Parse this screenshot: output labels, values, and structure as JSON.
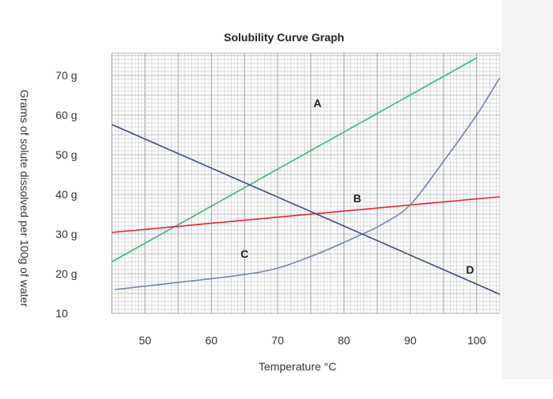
{
  "chart_data": {
    "type": "line",
    "title": "Solubility Curve Graph",
    "xlabel": "Temperature °C",
    "ylabel": "Grams of solute dissolved per 100g of water",
    "xlim": [
      45,
      103.5
    ],
    "ylim": [
      10,
      75.6
    ],
    "grid": true,
    "x_ticks": [
      {
        "v": 50,
        "label": "50"
      },
      {
        "v": 60,
        "label": "60"
      },
      {
        "v": 70,
        "label": "70"
      },
      {
        "v": 80,
        "label": "80"
      },
      {
        "v": 90,
        "label": "90"
      },
      {
        "v": 100,
        "label": "100"
      }
    ],
    "y_ticks": [
      {
        "v": 10,
        "label": "10"
      },
      {
        "v": 20,
        "label": "20 g"
      },
      {
        "v": 30,
        "label": "30 g"
      },
      {
        "v": 40,
        "label": "40 g"
      },
      {
        "v": 50,
        "label": "50 g"
      },
      {
        "v": 60,
        "label": "60 g"
      },
      {
        "v": 70,
        "label": "70 g"
      }
    ],
    "series": [
      {
        "name": "A",
        "color": "#3cb878",
        "points": [
          [
            45,
            23
          ],
          [
            100,
            74.4
          ]
        ],
        "label_at": [
          76,
          62
        ]
      },
      {
        "name": "B",
        "color": "#e8262a",
        "points": [
          [
            45,
            30.4
          ],
          [
            103.5,
            39.4
          ]
        ],
        "label_at": [
          82,
          38
        ]
      },
      {
        "name": "C",
        "color": "#6f87a8",
        "points": [
          [
            45.5,
            16
          ],
          [
            55,
            17.8
          ],
          [
            64.2,
            19.6
          ],
          [
            70,
            21.4
          ],
          [
            76,
            25
          ],
          [
            82,
            29.4
          ],
          [
            85.7,
            32.4
          ],
          [
            90,
            37.4
          ],
          [
            95.3,
            49
          ],
          [
            100,
            60
          ],
          [
            103.5,
            69.4
          ]
        ],
        "label_at": [
          65,
          24
        ],
        "smooth": true
      },
      {
        "name": "D",
        "color": "#3d4f7c",
        "points": [
          [
            45,
            57.6
          ],
          [
            103.5,
            14.8
          ]
        ],
        "label_at": [
          99,
          20
        ]
      }
    ]
  }
}
